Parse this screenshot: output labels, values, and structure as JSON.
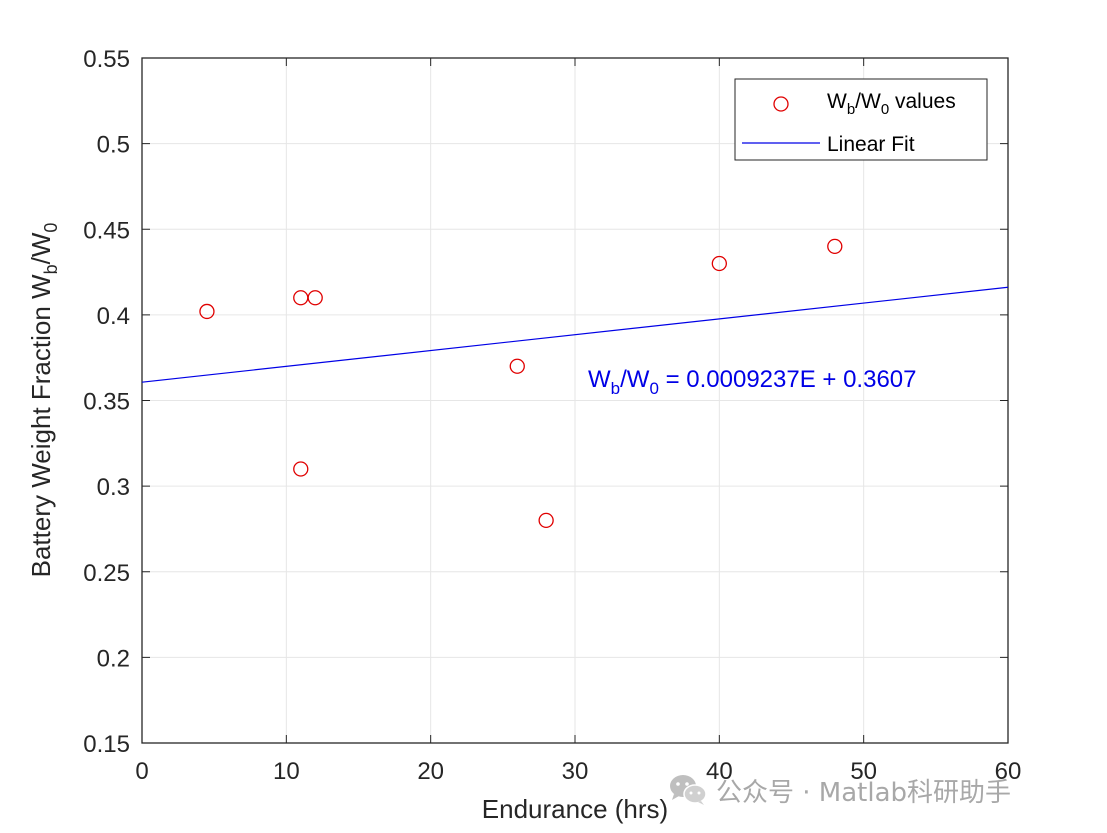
{
  "chart_data": {
    "type": "scatter",
    "xlabel": "Endurance (hrs)",
    "ylabel_parts": {
      "main": "Battery Weight Fraction W",
      "sub1": "b",
      "mid": "/W",
      "sub2": "0"
    },
    "xlim": [
      0,
      60
    ],
    "ylim": [
      0.15,
      0.55
    ],
    "xticks": [
      0,
      10,
      20,
      30,
      40,
      50,
      60
    ],
    "xtick_labels": [
      "0",
      "10",
      "20",
      "30",
      "40",
      "50",
      "60"
    ],
    "yticks": [
      0.15,
      0.2,
      0.25,
      0.3,
      0.35,
      0.4,
      0.45,
      0.5,
      0.55
    ],
    "ytick_labels": [
      "0.15",
      "0.2",
      "0.25",
      "0.3",
      "0.35",
      "0.4",
      "0.45",
      "0.5",
      "0.55"
    ],
    "grid": true,
    "legend_placement": "top-right",
    "series": [
      {
        "name_parts": {
          "a": "W",
          "b": "b",
          "c": "/W",
          "d": "0",
          "e": " values"
        },
        "kind": "scatter",
        "marker": "circle-open",
        "color": "#e00000",
        "x": [
          4.5,
          11,
          11,
          12,
          26,
          28,
          40,
          48
        ],
        "y": [
          0.402,
          0.41,
          0.31,
          0.41,
          0.37,
          0.28,
          0.43,
          0.44
        ]
      },
      {
        "name": "Linear Fit",
        "kind": "line",
        "color": "#0000e6",
        "slope": 0.0009237,
        "intercept": 0.3607,
        "x": [
          0,
          60
        ]
      }
    ],
    "annotation": {
      "parts": {
        "a": "W",
        "b": "b",
        "c": "/W",
        "d": "0",
        "e": " = 0.0009237E + 0.3607"
      },
      "color": "#0000e6"
    }
  },
  "watermark": {
    "text": "公众号 · Matlab科研助手",
    "icon": "wechat-icon"
  }
}
